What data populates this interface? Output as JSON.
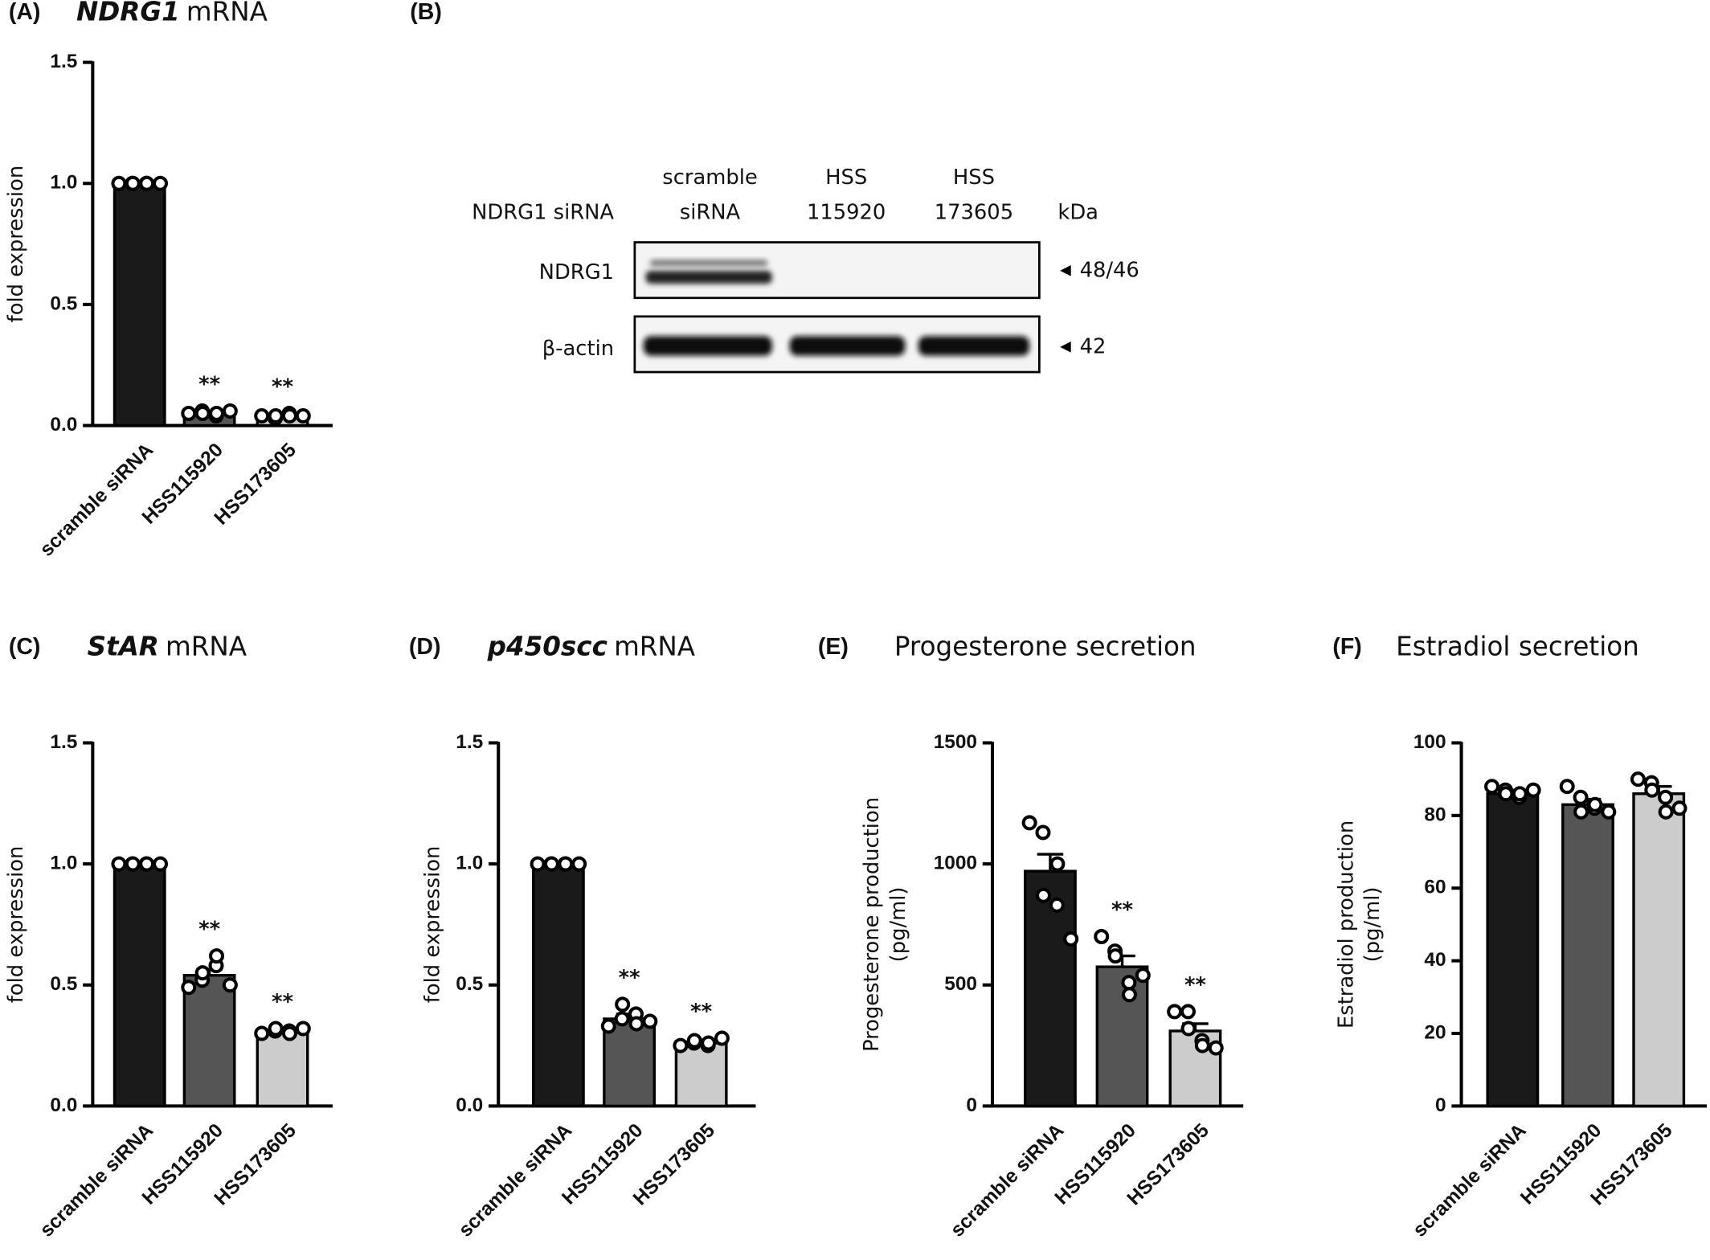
{
  "chart_data": [
    {
      "type": "bar",
      "panel": "(A)",
      "gene": "NDRG1",
      "title": "mRNA",
      "y_label": [
        "fold expression"
      ],
      "categories": [
        "scramble siRNA",
        "HSS115920",
        "HSS173605"
      ],
      "colors": [
        "#1a1a1a",
        "#555555",
        "#cccccc"
      ],
      "values": [
        1.0,
        0.05,
        0.04
      ],
      "errors": [
        0,
        0.005,
        0.005
      ],
      "points": [
        [
          1,
          1,
          1,
          1,
          1,
          1
        ],
        [
          0.05,
          0.06,
          0.05,
          0.04,
          0.05,
          0.06
        ],
        [
          0.04,
          0.03,
          0.04,
          0.05,
          0.04,
          0.04
        ]
      ],
      "annotations": [
        null,
        "**",
        "**"
      ],
      "ylim": [
        0,
        1.5
      ],
      "yticks": [
        {
          "value": 0,
          "label": "0.0"
        },
        0.5,
        {
          "value": 1,
          "label": "1.0"
        },
        1.5
      ]
    },
    {
      "type": "bar",
      "panel": "(C)",
      "gene": "StAR",
      "title": "mRNA",
      "y_label": [
        "fold expression"
      ],
      "categories": [
        "scramble siRNA",
        "HSS115920",
        "HSS173605"
      ],
      "colors": [
        "#1a1a1a",
        "#555555",
        "#cccccc"
      ],
      "values": [
        1.0,
        0.54,
        0.31
      ],
      "errors": [
        0,
        0.025,
        0.005
      ],
      "points": [
        [
          1,
          1,
          1,
          1,
          1,
          1
        ],
        [
          0.49,
          0.52,
          0.55,
          0.58,
          0.62,
          0.5
        ],
        [
          0.3,
          0.31,
          0.32,
          0.31,
          0.3,
          0.32
        ]
      ],
      "annotations": [
        null,
        "**",
        "**"
      ],
      "ylim": [
        0,
        1.5
      ],
      "yticks": [
        {
          "value": 0,
          "label": "0.0"
        },
        0.5,
        {
          "value": 1,
          "label": "1.0"
        },
        1.5
      ]
    },
    {
      "type": "bar",
      "panel": "(D)",
      "gene": "p450scc",
      "title": "mRNA",
      "y_label": [
        "fold expression"
      ],
      "categories": [
        "scramble siRNA",
        "HSS115920",
        "HSS173605"
      ],
      "colors": [
        "#1a1a1a",
        "#555555",
        "#cccccc"
      ],
      "values": [
        1.0,
        0.36,
        0.26
      ],
      "errors": [
        0,
        0.02,
        0.005
      ],
      "points": [
        [
          1,
          1,
          1,
          1,
          1,
          1
        ],
        [
          0.33,
          0.36,
          0.42,
          0.38,
          0.34,
          0.35
        ],
        [
          0.25,
          0.26,
          0.27,
          0.25,
          0.26,
          0.28
        ]
      ],
      "annotations": [
        null,
        "**",
        "**"
      ],
      "ylim": [
        0,
        1.5
      ],
      "yticks": [
        {
          "value": 0,
          "label": "0.0"
        },
        0.5,
        {
          "value": 1,
          "label": "1.0"
        },
        1.5
      ]
    },
    {
      "type": "bar",
      "panel": "(E)",
      "title": "Progesterone secretion",
      "y_label": [
        "Progesterone production",
        "(pg/ml)"
      ],
      "categories": [
        "scramble siRNA",
        "HSS115920",
        "HSS173605"
      ],
      "colors": [
        "#1a1a1a",
        "#555555",
        "#cccccc"
      ],
      "values": [
        970,
        575,
        310
      ],
      "errors": [
        70,
        45,
        30
      ],
      "points": [
        [
          1170,
          1130,
          870,
          830,
          1000,
          690
        ],
        [
          700,
          640,
          620,
          510,
          460,
          540
        ],
        [
          390,
          390,
          320,
          270,
          250,
          240
        ]
      ],
      "annotations": [
        null,
        "**",
        "**"
      ],
      "ylim": [
        0,
        1500
      ],
      "yticks": [
        0,
        500,
        1000,
        1500
      ]
    },
    {
      "type": "bar",
      "panel": "(F)",
      "title": "Estradiol secretion",
      "y_label": [
        "Estradiol production",
        "(pg/ml)"
      ],
      "categories": [
        "scramble siRNA",
        "HSS115920",
        "HSS173605"
      ],
      "colors": [
        "#1a1a1a",
        "#555555",
        "#cccccc"
      ],
      "values": [
        86,
        83,
        86
      ],
      "errors": [
        1,
        1.5,
        2
      ],
      "points": [
        [
          88,
          87,
          86,
          85,
          86,
          87
        ],
        [
          88,
          85,
          81,
          82,
          83,
          81
        ],
        [
          90,
          89,
          87,
          85,
          81,
          82
        ]
      ],
      "annotations": [
        null,
        null,
        null
      ],
      "ylim": [
        0,
        100
      ],
      "yticks": [
        0,
        20,
        40,
        60,
        80,
        100
      ]
    }
  ],
  "blot": {
    "panel": "(B)",
    "row_header": "NDRG1 siRNA",
    "columns": [
      [
        "scramble",
        "siRNA"
      ],
      [
        "HSS",
        "115920"
      ],
      [
        "HSS",
        "173605"
      ]
    ],
    "unit": "kDa",
    "rows": [
      {
        "label": "NDRG1",
        "size": "48/46"
      },
      {
        "label": "β-actin",
        "size": "42"
      }
    ]
  }
}
